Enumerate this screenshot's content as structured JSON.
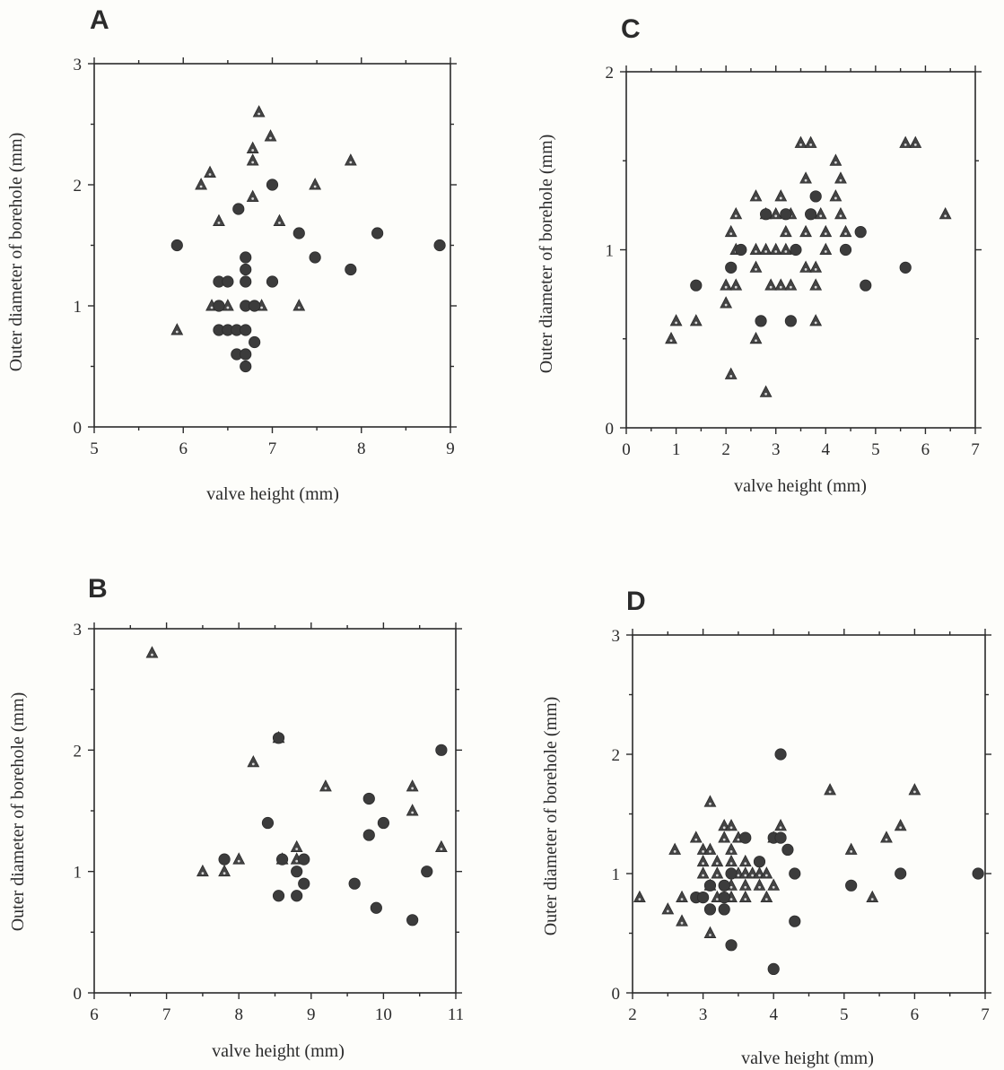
{
  "chart_data": [
    {
      "panel": "A",
      "type": "scatter",
      "xlabel": "valve height (mm)",
      "ylabel": "Outer diameter of borehole (mm)",
      "xlim": [
        5,
        9
      ],
      "ylim": [
        0,
        3
      ],
      "xticks": [
        "5",
        "6",
        "7",
        "8",
        "9"
      ],
      "yticks": [
        "0",
        "1",
        "2",
        "3"
      ],
      "series": [
        {
          "marker": "triangle",
          "points": [
            [
              6.85,
              2.6
            ],
            [
              6.98,
              2.4
            ],
            [
              6.78,
              2.3
            ],
            [
              6.78,
              2.2
            ],
            [
              7.88,
              2.2
            ],
            [
              6.3,
              2.1
            ],
            [
              6.2,
              2.0
            ],
            [
              7.48,
              2.0
            ],
            [
              6.78,
              1.9
            ],
            [
              6.4,
              1.7
            ],
            [
              7.08,
              1.7
            ],
            [
              6.32,
              1.0
            ],
            [
              6.5,
              1.0
            ],
            [
              6.88,
              1.0
            ],
            [
              7.3,
              1.0
            ],
            [
              5.93,
              0.8
            ]
          ]
        },
        {
          "marker": "circle",
          "points": [
            [
              7.0,
              2.0
            ],
            [
              6.62,
              1.8
            ],
            [
              7.3,
              1.6
            ],
            [
              8.18,
              1.6
            ],
            [
              5.93,
              1.5
            ],
            [
              8.88,
              1.5
            ],
            [
              6.7,
              1.4
            ],
            [
              7.48,
              1.4
            ],
            [
              6.7,
              1.3
            ],
            [
              7.88,
              1.3
            ],
            [
              6.4,
              1.2
            ],
            [
              6.5,
              1.2
            ],
            [
              6.7,
              1.2
            ],
            [
              7.0,
              1.2
            ],
            [
              6.4,
              1.0
            ],
            [
              6.7,
              1.0
            ],
            [
              6.8,
              1.0
            ],
            [
              6.4,
              0.8
            ],
            [
              6.5,
              0.8
            ],
            [
              6.6,
              0.8
            ],
            [
              6.7,
              0.8
            ],
            [
              6.8,
              0.7
            ],
            [
              6.6,
              0.6
            ],
            [
              6.7,
              0.6
            ],
            [
              6.7,
              0.5
            ]
          ]
        }
      ]
    },
    {
      "panel": "B",
      "type": "scatter",
      "xlabel": "valve height (mm)",
      "ylabel": "Outer diameter of borehole (mm)",
      "xlim": [
        6,
        11
      ],
      "ylim": [
        0,
        3
      ],
      "xticks": [
        "6",
        "7",
        "8",
        "9",
        "10",
        "11"
      ],
      "yticks": [
        "0",
        "1",
        "2",
        "3"
      ],
      "series": [
        {
          "marker": "triangle",
          "points": [
            [
              6.8,
              2.8
            ],
            [
              8.55,
              2.1
            ],
            [
              8.2,
              1.9
            ],
            [
              9.2,
              1.7
            ],
            [
              10.4,
              1.7
            ],
            [
              10.4,
              1.5
            ],
            [
              8.8,
              1.2
            ],
            [
              10.8,
              1.2
            ],
            [
              8.6,
              1.1
            ],
            [
              8.8,
              1.1
            ],
            [
              8.0,
              1.1
            ],
            [
              7.5,
              1.0
            ],
            [
              7.8,
              1.0
            ]
          ]
        },
        {
          "marker": "circle",
          "points": [
            [
              8.55,
              2.1
            ],
            [
              10.8,
              2.0
            ],
            [
              9.8,
              1.6
            ],
            [
              8.4,
              1.4
            ],
            [
              10.0,
              1.4
            ],
            [
              9.8,
              1.3
            ],
            [
              7.8,
              1.1
            ],
            [
              8.6,
              1.1
            ],
            [
              8.9,
              1.1
            ],
            [
              8.8,
              1.0
            ],
            [
              10.6,
              1.0
            ],
            [
              8.9,
              0.9
            ],
            [
              9.6,
              0.9
            ],
            [
              8.55,
              0.8
            ],
            [
              8.8,
              0.8
            ],
            [
              9.9,
              0.7
            ],
            [
              10.4,
              0.6
            ]
          ]
        }
      ]
    },
    {
      "panel": "C",
      "type": "scatter",
      "xlabel": "valve height (mm)",
      "ylabel": "Outer diameter of borehole (mm)",
      "xlim": [
        0,
        7
      ],
      "ylim": [
        0,
        2
      ],
      "xticks": [
        "0",
        "1",
        "2",
        "3",
        "4",
        "5",
        "6",
        "7"
      ],
      "yticks": [
        "0",
        "1",
        "2"
      ],
      "series": [
        {
          "marker": "triangle",
          "points": [
            [
              3.5,
              1.6
            ],
            [
              3.7,
              1.6
            ],
            [
              5.6,
              1.6
            ],
            [
              5.8,
              1.6
            ],
            [
              4.2,
              1.5
            ],
            [
              3.6,
              1.4
            ],
            [
              4.3,
              1.4
            ],
            [
              2.6,
              1.3
            ],
            [
              3.1,
              1.3
            ],
            [
              4.2,
              1.3
            ],
            [
              2.2,
              1.2
            ],
            [
              2.8,
              1.2
            ],
            [
              3.0,
              1.2
            ],
            [
              3.3,
              1.2
            ],
            [
              3.9,
              1.2
            ],
            [
              4.3,
              1.2
            ],
            [
              6.4,
              1.2
            ],
            [
              2.1,
              1.1
            ],
            [
              3.2,
              1.1
            ],
            [
              3.6,
              1.1
            ],
            [
              4.0,
              1.1
            ],
            [
              4.4,
              1.1
            ],
            [
              2.2,
              1.0
            ],
            [
              2.6,
              1.0
            ],
            [
              2.8,
              1.0
            ],
            [
              3.0,
              1.0
            ],
            [
              3.2,
              1.0
            ],
            [
              4.0,
              1.0
            ],
            [
              2.6,
              0.9
            ],
            [
              3.6,
              0.9
            ],
            [
              3.8,
              0.9
            ],
            [
              2.0,
              0.8
            ],
            [
              2.2,
              0.8
            ],
            [
              2.9,
              0.8
            ],
            [
              3.1,
              0.8
            ],
            [
              3.3,
              0.8
            ],
            [
              3.8,
              0.8
            ],
            [
              2.0,
              0.7
            ],
            [
              1.0,
              0.6
            ],
            [
              1.4,
              0.6
            ],
            [
              3.8,
              0.6
            ],
            [
              0.9,
              0.5
            ],
            [
              2.6,
              0.5
            ],
            [
              2.1,
              0.3
            ],
            [
              2.8,
              0.2
            ]
          ]
        },
        {
          "marker": "circle",
          "points": [
            [
              2.8,
              1.2
            ],
            [
              3.8,
              1.3
            ],
            [
              3.2,
              1.2
            ],
            [
              3.7,
              1.2
            ],
            [
              4.7,
              1.1
            ],
            [
              2.3,
              1.0
            ],
            [
              3.4,
              1.0
            ],
            [
              4.4,
              1.0
            ],
            [
              2.1,
              0.9
            ],
            [
              5.6,
              0.9
            ],
            [
              1.4,
              0.8
            ],
            [
              4.8,
              0.8
            ],
            [
              2.7,
              0.6
            ],
            [
              3.3,
              0.6
            ]
          ]
        }
      ]
    },
    {
      "panel": "D",
      "type": "scatter",
      "xlabel": "valve height (mm)",
      "ylabel": "Outer diameter of borehole (mm)",
      "xlim": [
        2,
        7
      ],
      "ylim": [
        0,
        3
      ],
      "xticks": [
        "2",
        "3",
        "4",
        "5",
        "6",
        "7"
      ],
      "yticks": [
        "0",
        "1",
        "2",
        "3"
      ],
      "series": [
        {
          "marker": "triangle",
          "points": [
            [
              4.8,
              1.7
            ],
            [
              6.0,
              1.7
            ],
            [
              3.1,
              1.6
            ],
            [
              3.3,
              1.4
            ],
            [
              3.4,
              1.4
            ],
            [
              4.1,
              1.4
            ],
            [
              5.8,
              1.4
            ],
            [
              2.9,
              1.3
            ],
            [
              3.3,
              1.3
            ],
            [
              3.5,
              1.3
            ],
            [
              4.0,
              1.3
            ],
            [
              5.6,
              1.3
            ],
            [
              2.6,
              1.2
            ],
            [
              3.0,
              1.2
            ],
            [
              3.1,
              1.2
            ],
            [
              3.4,
              1.2
            ],
            [
              5.1,
              1.2
            ],
            [
              3.0,
              1.1
            ],
            [
              3.2,
              1.1
            ],
            [
              3.4,
              1.1
            ],
            [
              3.6,
              1.1
            ],
            [
              3.0,
              1.0
            ],
            [
              3.2,
              1.0
            ],
            [
              3.5,
              1.0
            ],
            [
              3.6,
              1.0
            ],
            [
              3.7,
              1.0
            ],
            [
              3.8,
              1.0
            ],
            [
              3.9,
              1.0
            ],
            [
              3.1,
              0.9
            ],
            [
              3.4,
              0.9
            ],
            [
              3.6,
              0.9
            ],
            [
              3.8,
              0.9
            ],
            [
              4.0,
              0.9
            ],
            [
              2.1,
              0.8
            ],
            [
              2.7,
              0.8
            ],
            [
              3.2,
              0.8
            ],
            [
              3.4,
              0.8
            ],
            [
              3.6,
              0.8
            ],
            [
              3.9,
              0.8
            ],
            [
              5.4,
              0.8
            ],
            [
              2.5,
              0.7
            ],
            [
              2.7,
              0.6
            ],
            [
              3.1,
              0.5
            ]
          ]
        },
        {
          "marker": "circle",
          "points": [
            [
              4.1,
              2.0
            ],
            [
              3.6,
              1.3
            ],
            [
              4.0,
              1.3
            ],
            [
              4.1,
              1.3
            ],
            [
              4.2,
              1.2
            ],
            [
              3.8,
              1.1
            ],
            [
              3.4,
              1.0
            ],
            [
              4.3,
              1.0
            ],
            [
              5.8,
              1.0
            ],
            [
              6.9,
              1.0
            ],
            [
              3.1,
              0.9
            ],
            [
              3.3,
              0.9
            ],
            [
              5.1,
              0.9
            ],
            [
              2.9,
              0.8
            ],
            [
              3.0,
              0.8
            ],
            [
              3.3,
              0.8
            ],
            [
              3.1,
              0.7
            ],
            [
              3.3,
              0.7
            ],
            [
              4.3,
              0.6
            ],
            [
              3.4,
              0.4
            ],
            [
              4.0,
              0.2
            ]
          ]
        }
      ]
    }
  ]
}
